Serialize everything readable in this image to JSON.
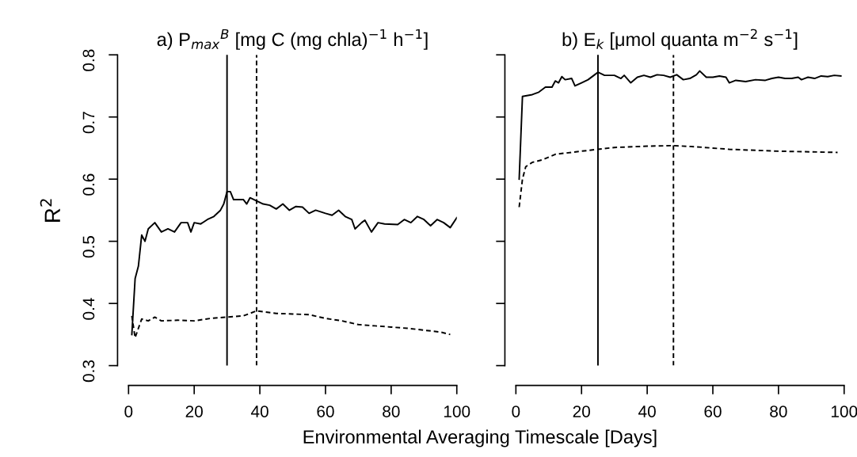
{
  "chart_data": [
    {
      "type": "line",
      "title": "a) P$_{max}$$^{B}$ [mg C (mg chla)$^{−1}$ h$^{−1}$]",
      "ylabel": "R$^{2}$",
      "xlabel": "Environmental Averaging Timescale [Days]",
      "xlim": [
        0,
        100
      ],
      "ylim": [
        0.3,
        0.8
      ],
      "xticks": [
        0,
        20,
        40,
        60,
        80,
        100
      ],
      "yticks": [
        0.3,
        0.4,
        0.5,
        0.6,
        0.7,
        0.8
      ],
      "grid": false,
      "legend": false,
      "series": [
        {
          "color": "#000000",
          "line_style": "solid",
          "x": [
            1,
            2,
            3,
            4,
            5,
            6,
            8,
            10,
            12,
            14,
            16,
            18,
            19,
            20,
            22,
            24,
            26,
            28,
            29,
            30,
            31,
            32,
            35,
            36,
            37,
            39,
            41,
            43,
            45,
            47,
            49,
            51,
            53,
            55,
            57,
            60,
            62,
            64,
            66,
            68,
            69,
            71,
            72,
            74,
            76,
            78,
            82,
            84,
            86,
            88,
            90,
            92,
            94,
            96,
            98,
            100
          ],
          "values": [
            0.35,
            0.44,
            0.46,
            0.51,
            0.5,
            0.52,
            0.53,
            0.515,
            0.52,
            0.515,
            0.53,
            0.53,
            0.515,
            0.53,
            0.528,
            0.535,
            0.54,
            0.55,
            0.56,
            0.58,
            0.58,
            0.567,
            0.567,
            0.56,
            0.57,
            0.565,
            0.56,
            0.558,
            0.552,
            0.56,
            0.55,
            0.556,
            0.555,
            0.545,
            0.55,
            0.545,
            0.542,
            0.55,
            0.54,
            0.535,
            0.52,
            0.53,
            0.534,
            0.515,
            0.53,
            0.528,
            0.527,
            0.535,
            0.53,
            0.54,
            0.535,
            0.525,
            0.535,
            0.53,
            0.522,
            0.538
          ]
        },
        {
          "color": "#000000",
          "line_style": "dashed",
          "x": [
            1,
            2,
            3,
            4,
            6,
            8,
            10,
            15,
            20,
            25,
            30,
            35,
            39,
            45,
            50,
            55,
            60,
            65,
            70,
            75,
            80,
            85,
            90,
            95,
            98
          ],
          "values": [
            0.38,
            0.345,
            0.36,
            0.375,
            0.372,
            0.378,
            0.372,
            0.373,
            0.372,
            0.376,
            0.378,
            0.38,
            0.388,
            0.384,
            0.383,
            0.382,
            0.376,
            0.372,
            0.366,
            0.364,
            0.362,
            0.36,
            0.357,
            0.354,
            0.35
          ]
        }
      ],
      "ref_lines": [
        {
          "axis": "x",
          "value": 30,
          "line_style": "solid",
          "color": "#000000"
        },
        {
          "axis": "x",
          "value": 39,
          "line_style": "dashed",
          "color": "#000000"
        }
      ]
    },
    {
      "type": "line",
      "title": "b) E$_{k}$ [μmol quanta m$^{−2}$ s$^{−1}$]",
      "tick_labels": "x",
      "xlim": [
        0,
        100
      ],
      "ylim": [
        0.3,
        0.8
      ],
      "xticks": [
        0,
        20,
        40,
        60,
        80,
        100
      ],
      "yticks": [
        0.3,
        0.4,
        0.5,
        0.6,
        0.7,
        0.8
      ],
      "grid": false,
      "legend": false,
      "series": [
        {
          "color": "#000000",
          "line_style": "solid",
          "x": [
            1,
            2,
            5,
            7,
            9,
            11,
            12,
            13,
            14,
            15,
            17,
            18,
            20,
            22,
            24,
            25,
            27,
            30,
            32,
            33,
            35,
            37,
            39,
            41,
            43,
            45,
            47,
            49,
            51,
            53,
            55,
            56,
            58,
            60,
            62,
            64,
            65,
            67,
            70,
            73,
            76,
            78,
            80,
            82,
            84,
            86,
            87,
            89,
            91,
            93,
            95,
            97,
            99
          ],
          "values": [
            0.6,
            0.733,
            0.736,
            0.74,
            0.748,
            0.748,
            0.758,
            0.755,
            0.765,
            0.76,
            0.762,
            0.75,
            0.755,
            0.76,
            0.768,
            0.772,
            0.767,
            0.767,
            0.762,
            0.767,
            0.755,
            0.764,
            0.767,
            0.764,
            0.768,
            0.767,
            0.764,
            0.768,
            0.76,
            0.762,
            0.768,
            0.774,
            0.764,
            0.764,
            0.766,
            0.764,
            0.755,
            0.759,
            0.757,
            0.76,
            0.759,
            0.762,
            0.764,
            0.762,
            0.762,
            0.764,
            0.76,
            0.764,
            0.762,
            0.766,
            0.765,
            0.767,
            0.766
          ]
        },
        {
          "color": "#000000",
          "line_style": "dashed",
          "x": [
            1,
            2,
            3,
            5,
            8,
            12,
            20,
            25,
            30,
            40,
            48,
            55,
            65,
            80,
            98
          ],
          "values": [
            0.555,
            0.6,
            0.62,
            0.627,
            0.631,
            0.64,
            0.645,
            0.648,
            0.651,
            0.653,
            0.654,
            0.652,
            0.648,
            0.645,
            0.643
          ]
        }
      ],
      "ref_lines": [
        {
          "axis": "x",
          "value": 25,
          "line_style": "solid",
          "color": "#000000"
        },
        {
          "axis": "x",
          "value": 48,
          "line_style": "dashed",
          "color": "#000000"
        }
      ]
    }
  ]
}
